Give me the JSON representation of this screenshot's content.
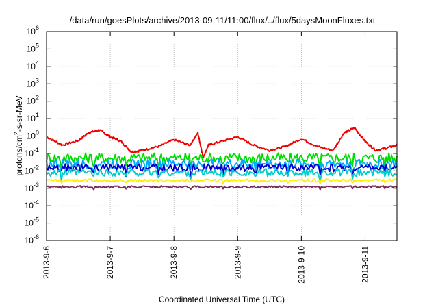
{
  "chart_data": {
    "type": "line",
    "title": "/data/run/goesPlots/archive/2013-09-11/11:00/flux/../flux/5daysMoonFluxes.txt",
    "xlabel": "Coordinated Universal Time (UTC)",
    "ylabel_parts": [
      "protons/cm",
      "2",
      "-s-sr-MeV"
    ],
    "y_scale": "log",
    "ylim": [
      1e-06,
      1000000.0
    ],
    "y_ticks": [
      {
        "base": "10",
        "exp": "-6"
      },
      {
        "base": "10",
        "exp": "-5"
      },
      {
        "base": "10",
        "exp": "-4"
      },
      {
        "base": "10",
        "exp": "-3"
      },
      {
        "base": "10",
        "exp": "-2"
      },
      {
        "base": "10",
        "exp": "-1"
      },
      {
        "base": "10",
        "exp": "0"
      },
      {
        "base": "10",
        "exp": "1"
      },
      {
        "base": "10",
        "exp": "2"
      },
      {
        "base": "10",
        "exp": "3"
      },
      {
        "base": "10",
        "exp": "4"
      },
      {
        "base": "10",
        "exp": "5"
      },
      {
        "base": "10",
        "exp": "6"
      }
    ],
    "xlim": [
      "2013-09-06T00:00",
      "2013-09-11T12:00"
    ],
    "x_ticks": [
      "2013-9-6",
      "2013-9-7",
      "2013-9-8",
      "2013-9-9",
      "2013-9-10",
      "2013-9-11"
    ],
    "grid": true,
    "series": [
      {
        "color": "#ee0000",
        "points": [
          [
            "2013-09-06T00:00",
            0.9
          ],
          [
            "2013-09-06T06:00",
            0.3
          ],
          [
            "2013-09-06T12:00",
            0.55
          ],
          [
            "2013-09-06T16:00",
            1.6
          ],
          [
            "2013-09-06T20:00",
            2.2
          ],
          [
            "2013-09-07T00:00",
            0.9
          ],
          [
            "2013-09-07T04:00",
            0.5
          ],
          [
            "2013-09-07T08:00",
            0.12
          ],
          [
            "2013-09-07T12:00",
            0.15
          ],
          [
            "2013-09-07T18:00",
            0.25
          ],
          [
            "2013-09-08T00:00",
            0.6
          ],
          [
            "2013-09-08T06:00",
            0.3
          ],
          [
            "2013-09-08T09:00",
            1.5
          ],
          [
            "2013-09-08T11:00",
            0.06
          ],
          [
            "2013-09-08T13:00",
            0.3
          ],
          [
            "2013-09-08T18:00",
            0.5
          ],
          [
            "2013-09-09T00:00",
            0.9
          ],
          [
            "2013-09-09T06:00",
            0.3
          ],
          [
            "2013-09-09T12:00",
            0.15
          ],
          [
            "2013-09-09T18:00",
            0.25
          ],
          [
            "2013-09-10T00:00",
            0.7
          ],
          [
            "2013-09-10T06:00",
            0.25
          ],
          [
            "2013-09-10T12:00",
            0.15
          ],
          [
            "2013-09-10T16:00",
            1.5
          ],
          [
            "2013-09-10T20:00",
            3.0
          ],
          [
            "2013-09-11T00:00",
            0.5
          ],
          [
            "2013-09-11T04:00",
            0.15
          ],
          [
            "2013-09-11T08:00",
            0.2
          ],
          [
            "2013-09-11T12:00",
            0.3
          ]
        ]
      },
      {
        "color": "#00dd00",
        "level": 0.055,
        "spread": 0.3
      },
      {
        "color": "#00aaff",
        "level": 0.025,
        "spread": 0.28
      },
      {
        "color": "#0000cc",
        "level": 0.015,
        "spread": 0.22
      },
      {
        "color": "#00cccc",
        "level": 0.008,
        "spread": 0.22
      },
      {
        "color": "#ffee00",
        "level": 0.0028,
        "spread": 0.08
      },
      {
        "color": "#7a2a5a",
        "level": 0.0012,
        "spread": 0.06
      }
    ]
  }
}
